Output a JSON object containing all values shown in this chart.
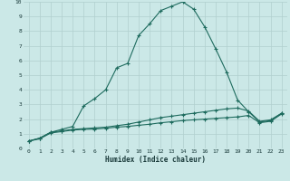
{
  "xlabel": "Humidex (Indice chaleur)",
  "background_color": "#cbe8e7",
  "grid_color": "#b0cfce",
  "line_color": "#1e6b5e",
  "xlim": [
    -0.5,
    23.5
  ],
  "ylim": [
    0,
    10
  ],
  "xticks": [
    0,
    1,
    2,
    3,
    4,
    5,
    6,
    7,
    8,
    9,
    10,
    11,
    12,
    13,
    14,
    15,
    16,
    17,
    18,
    19,
    20,
    21,
    22,
    23
  ],
  "yticks": [
    0,
    1,
    2,
    3,
    4,
    5,
    6,
    7,
    8,
    9,
    10
  ],
  "series": [
    {
      "x": [
        0,
        1,
        2,
        3,
        4,
        5,
        6,
        7,
        8,
        9,
        10,
        11,
        12,
        13,
        14,
        15,
        16,
        17,
        18,
        19,
        20,
        21,
        22,
        23
      ],
      "y": [
        0.5,
        0.7,
        1.1,
        1.3,
        1.5,
        2.9,
        3.4,
        4.0,
        5.5,
        5.8,
        7.7,
        8.5,
        9.4,
        9.7,
        10.0,
        9.5,
        8.3,
        6.8,
        5.2,
        3.3,
        2.5,
        1.8,
        1.9,
        2.4
      ]
    },
    {
      "x": [
        0,
        1,
        2,
        3,
        4,
        5,
        6,
        7,
        8,
        9,
        10,
        11,
        12,
        13,
        14,
        15,
        16,
        17,
        18,
        19,
        20,
        21,
        22,
        23
      ],
      "y": [
        0.5,
        0.7,
        1.1,
        1.2,
        1.3,
        1.35,
        1.4,
        1.45,
        1.55,
        1.65,
        1.8,
        1.95,
        2.1,
        2.2,
        2.3,
        2.4,
        2.5,
        2.6,
        2.7,
        2.75,
        2.55,
        1.85,
        1.95,
        2.4
      ]
    },
    {
      "x": [
        0,
        1,
        2,
        3,
        4,
        5,
        6,
        7,
        8,
        9,
        10,
        11,
        12,
        13,
        14,
        15,
        16,
        17,
        18,
        19,
        20,
        21,
        22,
        23
      ],
      "y": [
        0.5,
        0.65,
        1.05,
        1.15,
        1.25,
        1.3,
        1.32,
        1.38,
        1.45,
        1.5,
        1.58,
        1.65,
        1.75,
        1.82,
        1.9,
        1.95,
        2.0,
        2.05,
        2.1,
        2.15,
        2.25,
        1.75,
        1.85,
        2.35
      ]
    }
  ]
}
